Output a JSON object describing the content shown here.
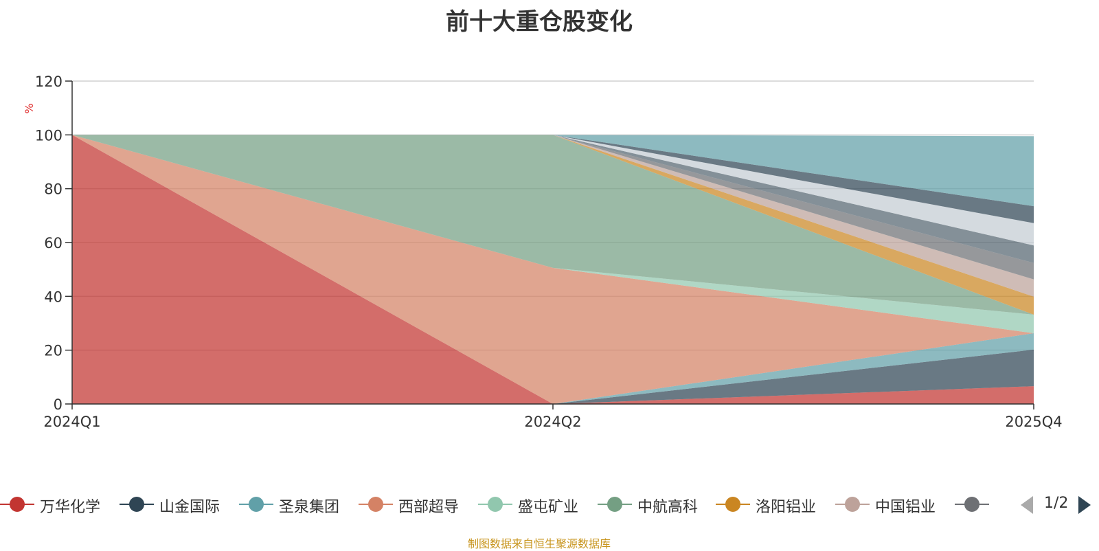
{
  "title": "前十大重仓股变化",
  "source_note": "制图数据来自恒生聚源数据库",
  "pager": {
    "text": "1/2"
  },
  "chart_data": {
    "type": "area",
    "stacked": true,
    "title": "前十大重仓股变化",
    "ylabel": "%",
    "ylim": [
      0,
      120
    ],
    "yticks": [
      "0",
      "20",
      "40",
      "60",
      "80",
      "100",
      "120"
    ],
    "categories": [
      "2024Q1",
      "2024Q2",
      "2025Q4"
    ],
    "grid": true,
    "legend_position": "bottom",
    "series": [
      {
        "name": "万华化学",
        "color": "#c23531",
        "values": [
          100,
          0,
          6.6
        ]
      },
      {
        "name": "山金国际",
        "color": "#2f4554",
        "values": [
          0,
          0,
          13.6
        ]
      },
      {
        "name": "圣泉集团",
        "color": "#61a0a8",
        "values": [
          0,
          0,
          6.1
        ]
      },
      {
        "name": "西部超导",
        "color": "#d48265",
        "values": [
          0,
          50.6,
          0
        ]
      },
      {
        "name": "盛屯矿业",
        "color": "#91c7ae",
        "values": [
          0,
          0,
          6.9
        ]
      },
      {
        "name": "中航高科",
        "color": "#749f83",
        "values": [
          0,
          49.4,
          0
        ]
      },
      {
        "name": "洛阳铝业",
        "color": "#ca8622",
        "values": [
          0,
          0,
          6.7
        ]
      },
      {
        "name": "中国铝业",
        "color": "#bda29a",
        "values": [
          0,
          0,
          6.4
        ]
      },
      {
        "name": "",
        "color": "#6e7074",
        "values": [
          0,
          0,
          6.1
        ]
      },
      {
        "name": "",
        "color": "#546570",
        "values": [
          0,
          0,
          6.5
        ]
      },
      {
        "name": "",
        "color": "#c4ccd3",
        "values": [
          0,
          0,
          8.3
        ]
      },
      {
        "name": "",
        "color": "#2f4554",
        "values": [
          0,
          0,
          6.3
        ]
      },
      {
        "name": "",
        "color": "#61a0a8",
        "values": [
          0,
          0,
          26.0
        ]
      }
    ]
  }
}
